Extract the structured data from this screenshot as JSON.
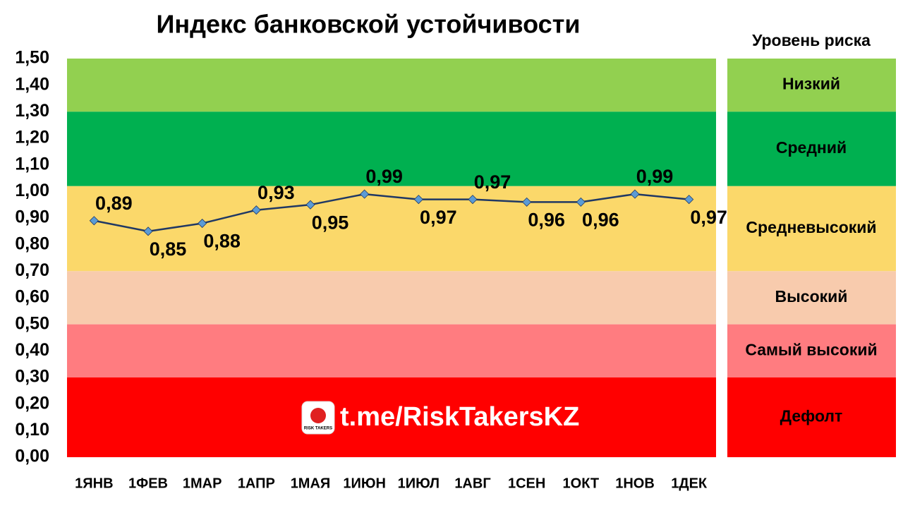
{
  "chart_data": {
    "type": "line",
    "title": "Индекс банковской устойчивости",
    "legend_title": "Уровень риска",
    "categories": [
      "1ЯНВ",
      "1ФЕВ",
      "1МАР",
      "1АПР",
      "1МАЯ",
      "1ИЮН",
      "1ИЮЛ",
      "1АВГ",
      "1СЕН",
      "1ОКТ",
      "1НОВ",
      "1ДЕК"
    ],
    "values": [
      0.89,
      0.85,
      0.88,
      0.93,
      0.95,
      0.99,
      0.97,
      0.97,
      0.96,
      0.96,
      0.99,
      0.97
    ],
    "value_labels": [
      "0,89",
      "0,85",
      "0,88",
      "0,93",
      "0,95",
      "0,99",
      "0,97",
      "0,97",
      "0,96",
      "0,96",
      "0,99",
      "0,97"
    ],
    "color": "#203864",
    "marker_color": "#5b9bd5",
    "ylim": [
      0,
      1.5
    ],
    "yticks": [
      {
        "value": 0,
        "label": "0,00"
      },
      {
        "value": 0.1,
        "label": "0,10"
      },
      {
        "value": 0.2,
        "label": "0,20"
      },
      {
        "value": 0.3,
        "label": "0,30"
      },
      {
        "value": 0.4,
        "label": "0,40"
      },
      {
        "value": 0.5,
        "label": "0,50"
      },
      {
        "value": 0.6,
        "label": "0,60"
      },
      {
        "value": 0.7,
        "label": "0,70"
      },
      {
        "value": 0.8,
        "label": "0,80"
      },
      {
        "value": 0.9,
        "label": "0,90"
      },
      {
        "value": 1.0,
        "label": "1,00"
      },
      {
        "value": 1.1,
        "label": "1,10"
      },
      {
        "value": 1.2,
        "label": "1,20"
      },
      {
        "value": 1.3,
        "label": "1,30"
      },
      {
        "value": 1.4,
        "label": "1,40"
      },
      {
        "value": 1.5,
        "label": "1,50"
      }
    ],
    "bands": [
      {
        "name": "Низкий",
        "from": 1.3,
        "to": 1.5,
        "color": "#92d050"
      },
      {
        "name": "Средний",
        "from": 1.02,
        "to": 1.3,
        "color": "#00b050"
      },
      {
        "name": "Средневысокий",
        "from": 0.7,
        "to": 1.02,
        "color": "#fbd86a"
      },
      {
        "name": "Высокий",
        "from": 0.5,
        "to": 0.7,
        "color": "#f8cbad"
      },
      {
        "name": "Самый высокий",
        "from": 0.3,
        "to": 0.5,
        "color": "#ff7c80"
      },
      {
        "name": "Дефолт",
        "from": 0,
        "to": 0.3,
        "color": "#ff0000"
      }
    ],
    "watermark": {
      "text": "t.me/RiskTakersKZ",
      "icon_text": "RISK TAKERS"
    }
  }
}
